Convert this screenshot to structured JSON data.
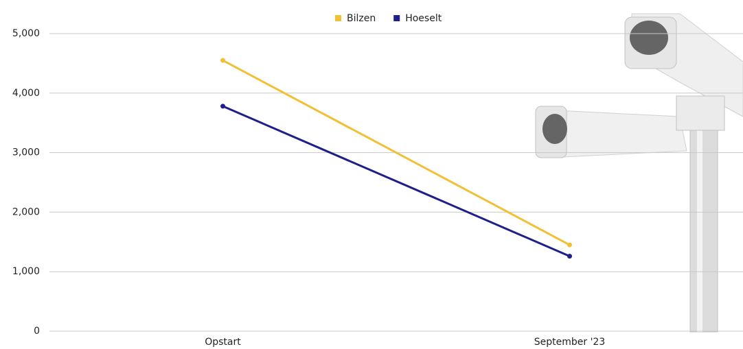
{
  "chart_data": {
    "type": "line",
    "categories": [
      "Opstart",
      "September '23"
    ],
    "series": [
      {
        "name": "Bilzen",
        "color": "#f2c037",
        "values": [
          4550,
          1450
        ]
      },
      {
        "name": "Hoeselt",
        "color": "#1f1f8a",
        "values": [
          3780,
          1260
        ]
      }
    ],
    "ylim": [
      0,
      5000
    ],
    "yticks": [
      0,
      {
        "value": 1000,
        "label": "1,000"
      },
      {
        "value": 2000,
        "label": "2,000"
      },
      {
        "value": 3000,
        "label": "3,000"
      },
      {
        "value": 4000,
        "label": "4,000"
      },
      {
        "value": 5000,
        "label": "5,000"
      }
    ],
    "grid": true,
    "legend": "top"
  }
}
